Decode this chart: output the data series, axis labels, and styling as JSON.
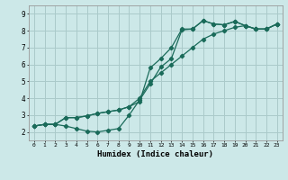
{
  "xlabel": "Humidex (Indice chaleur)",
  "background_color": "#cce8e8",
  "grid_color": "#aacaca",
  "line_color": "#1a6b5a",
  "xlim": [
    -0.5,
    23.5
  ],
  "ylim": [
    1.5,
    9.5
  ],
  "xticks": [
    0,
    1,
    2,
    3,
    4,
    5,
    6,
    7,
    8,
    9,
    10,
    11,
    12,
    13,
    14,
    15,
    16,
    17,
    18,
    19,
    20,
    21,
    22,
    23
  ],
  "yticks": [
    2,
    3,
    4,
    5,
    6,
    7,
    8,
    9
  ],
  "line1_x": [
    0,
    1,
    2,
    3,
    4,
    5,
    6,
    7,
    8,
    9,
    10,
    11,
    12,
    13,
    14,
    15,
    16,
    17,
    18,
    19,
    20,
    21,
    22,
    23
  ],
  "line1_y": [
    2.35,
    2.45,
    2.45,
    2.35,
    2.2,
    2.05,
    2.0,
    2.1,
    2.2,
    3.0,
    3.9,
    4.85,
    5.85,
    6.35,
    8.05,
    8.1,
    8.6,
    8.4,
    8.35,
    8.55,
    8.3,
    8.1,
    8.1,
    8.4
  ],
  "line2_x": [
    0,
    1,
    2,
    3,
    4,
    5,
    6,
    7,
    8,
    9,
    10,
    11,
    12,
    13,
    14,
    15,
    16,
    17,
    18,
    19,
    20,
    21,
    22,
    23
  ],
  "line2_y": [
    2.35,
    2.45,
    2.45,
    2.85,
    2.85,
    2.95,
    3.1,
    3.2,
    3.3,
    3.5,
    3.8,
    5.8,
    6.35,
    7.0,
    8.1,
    8.1,
    8.6,
    8.4,
    8.35,
    8.55,
    8.3,
    8.1,
    8.1,
    8.4
  ],
  "line3_x": [
    0,
    1,
    2,
    3,
    4,
    5,
    6,
    7,
    8,
    9,
    10,
    11,
    12,
    13,
    14,
    15,
    16,
    17,
    18,
    19,
    20,
    21,
    22,
    23
  ],
  "line3_y": [
    2.35,
    2.45,
    2.45,
    2.85,
    2.85,
    2.95,
    3.1,
    3.2,
    3.3,
    3.5,
    4.0,
    5.0,
    5.5,
    6.0,
    6.5,
    7.0,
    7.5,
    7.8,
    8.0,
    8.2,
    8.3,
    8.1,
    8.1,
    8.4
  ]
}
